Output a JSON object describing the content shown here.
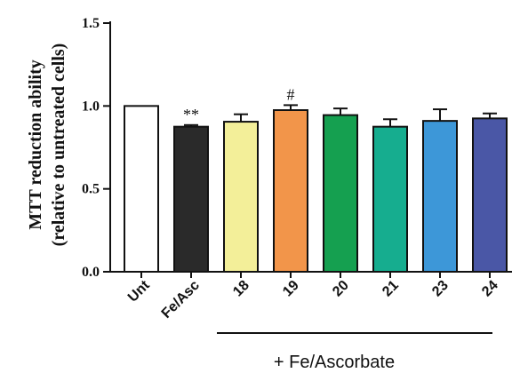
{
  "chart_data": {
    "type": "bar",
    "title": "",
    "xlabel": "",
    "ylabel": [
      "MTT reduction ability",
      "(relative to untreated cells)"
    ],
    "ylim": [
      0,
      1.5
    ],
    "yticks": [
      "0.0",
      "0.5",
      "1.0",
      "1.5"
    ],
    "categories": [
      "Unt",
      "Fe/Asc",
      "18",
      "19",
      "20",
      "21",
      "23",
      "24"
    ],
    "values": [
      1.0,
      0.875,
      0.905,
      0.975,
      0.945,
      0.875,
      0.91,
      0.925
    ],
    "errors": [
      0.0,
      0.01,
      0.045,
      0.03,
      0.04,
      0.045,
      0.07,
      0.03
    ],
    "colors": [
      "#ffffff",
      "#2a2a2a",
      "#f3ef99",
      "#f2954a",
      "#15a050",
      "#16ad8f",
      "#3d97d8",
      "#4a57a6"
    ],
    "annotations": [
      "",
      "**",
      "",
      "#",
      "",
      "",
      "",
      ""
    ],
    "group_label": "+ Fe/Ascorbate",
    "grid": false,
    "legend": "none"
  }
}
